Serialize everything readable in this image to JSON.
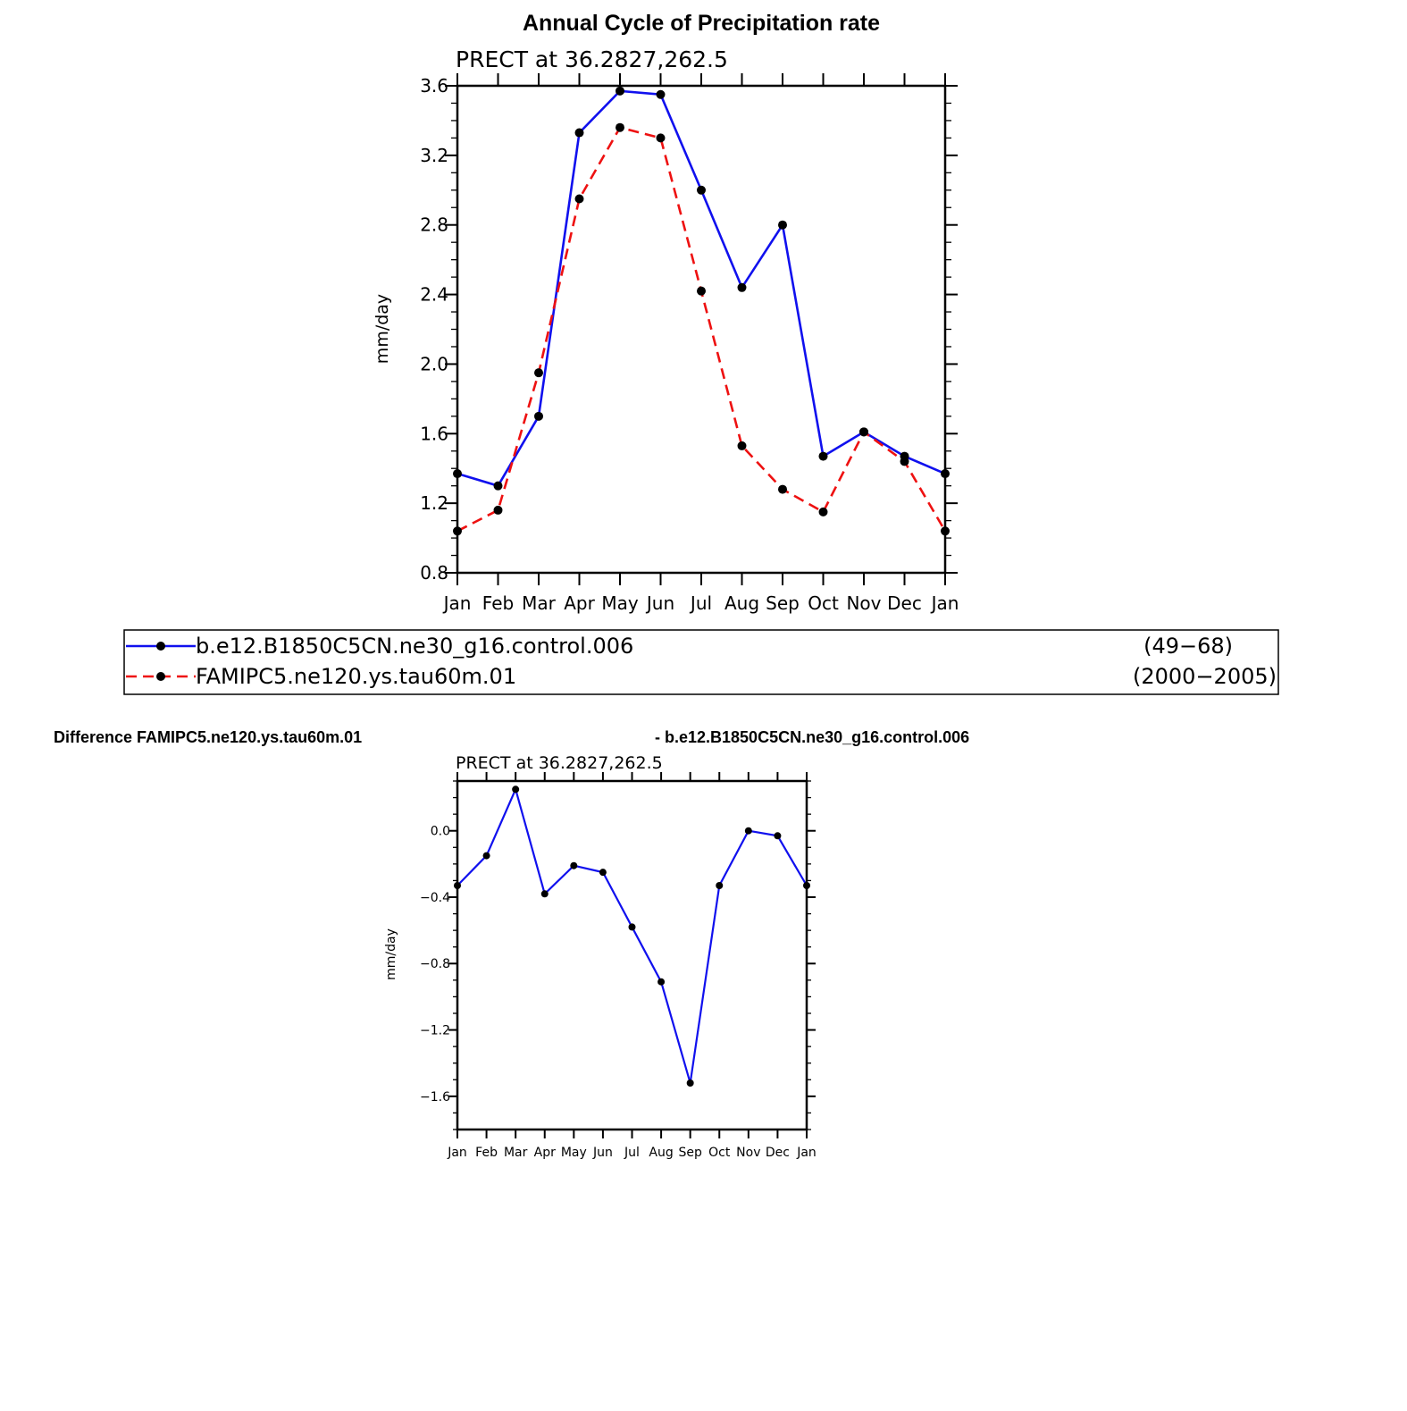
{
  "title": "Annual Cycle of Precipitation rate",
  "legend": {
    "entries": [
      {
        "label": "b.e12.B1850C5CN.ne30_g16.control.006",
        "years": "(49−68)",
        "color": "#1010ee",
        "dash": "solid"
      },
      {
        "label": "FAMIPC5.ne120.ys.tau60m.01",
        "years": "(2000−2005)",
        "color": "#ee1111",
        "dash": "dashed"
      }
    ]
  },
  "difference": {
    "left_title": "Difference FAMIPC5.ne120.ys.tau60m.01",
    "right_title": "- b.e12.B1850C5CN.ne30_g16.control.006"
  },
  "chart_data": [
    {
      "type": "line",
      "title": "Annual Cycle of Precipitation rate",
      "subtitle": "PRECT at 36.2827,262.5",
      "xlabel": "",
      "ylabel": "mm/day",
      "categories": [
        "Jan",
        "Feb",
        "Mar",
        "Apr",
        "May",
        "Jun",
        "Jul",
        "Aug",
        "Sep",
        "Oct",
        "Nov",
        "Dec",
        "Jan"
      ],
      "ylim": [
        0.8,
        3.6
      ],
      "yticks": [
        "0.8",
        "1.2",
        "1.6",
        "2.0",
        "2.4",
        "2.8",
        "3.2",
        "3.6"
      ],
      "series": [
        {
          "name": "b.e12.B1850C5CN.ne30_g16.control.006",
          "color": "#1010ee",
          "dash": "solid",
          "values": [
            1.37,
            1.3,
            1.7,
            3.33,
            3.57,
            3.55,
            3.0,
            2.44,
            2.8,
            1.47,
            1.61,
            1.47,
            1.37
          ]
        },
        {
          "name": "FAMIPC5.ne120.ys.tau60m.01",
          "color": "#ee1111",
          "dash": "dashed",
          "values": [
            1.04,
            1.16,
            1.95,
            2.95,
            3.36,
            3.3,
            2.42,
            1.53,
            1.28,
            1.15,
            1.61,
            1.44,
            1.04
          ]
        }
      ]
    },
    {
      "type": "line",
      "title": "Difference FAMIPC5.ne120.ys.tau60m.01 - b.e12.B1850C5CN.ne30_g16.control.006",
      "subtitle": "PRECT at 36.2827,262.5",
      "xlabel": "",
      "ylabel": "mm/day",
      "categories": [
        "Jan",
        "Feb",
        "Mar",
        "Apr",
        "May",
        "Jun",
        "Jul",
        "Aug",
        "Sep",
        "Oct",
        "Nov",
        "Dec",
        "Jan"
      ],
      "ylim": [
        -1.8,
        0.3
      ],
      "yticks": [
        "0.0",
        "−0.4",
        "−0.8",
        "−1.2",
        "−1.6"
      ],
      "ytick_values": [
        0.0,
        -0.4,
        -0.8,
        -1.2,
        -1.6
      ],
      "series": [
        {
          "name": "difference",
          "color": "#1010ee",
          "dash": "solid",
          "values": [
            -0.33,
            -0.15,
            0.25,
            -0.38,
            -0.21,
            -0.25,
            -0.58,
            -0.91,
            -1.52,
            -0.33,
            0.0,
            -0.03,
            -0.33
          ]
        }
      ]
    }
  ]
}
